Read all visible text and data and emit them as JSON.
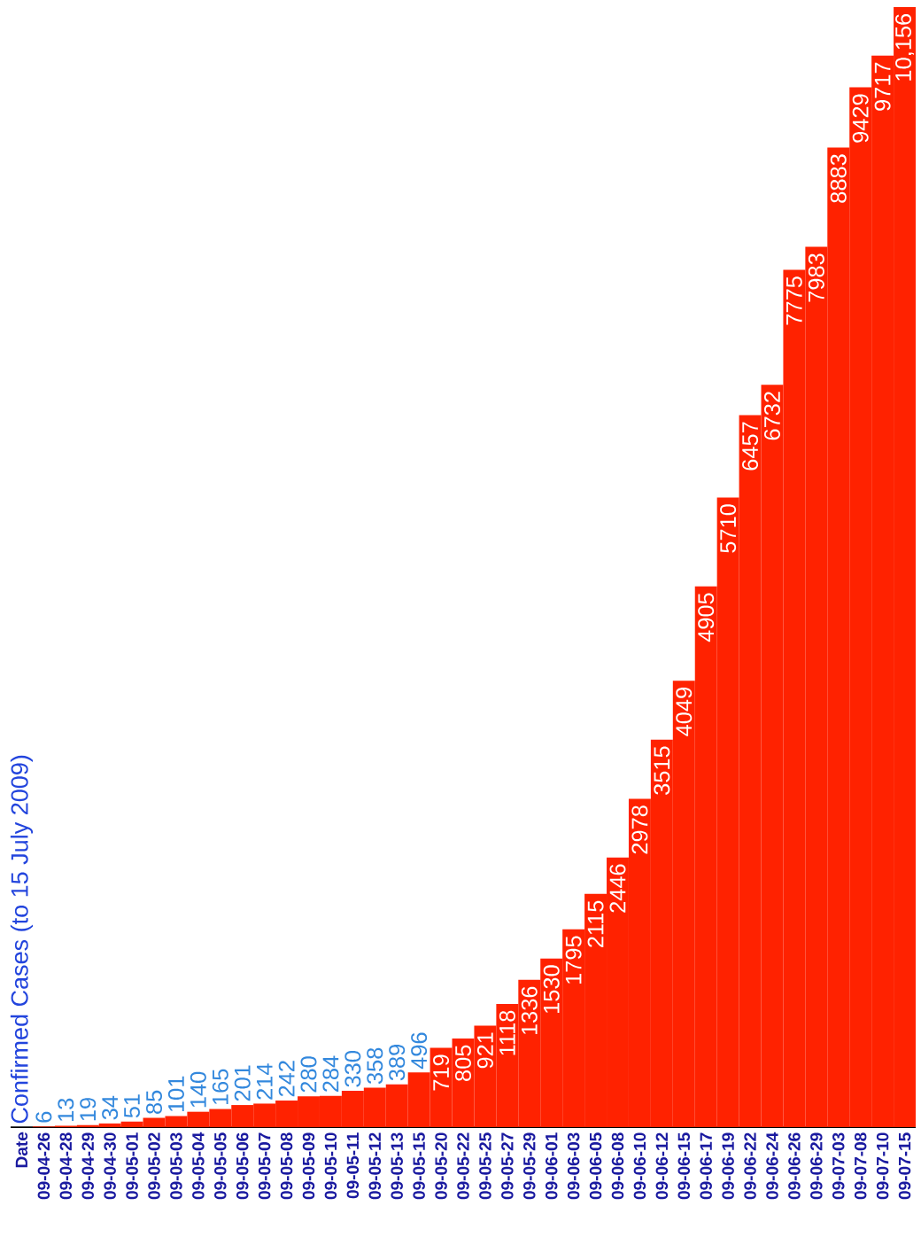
{
  "chart_data": {
    "type": "bar",
    "title": "Confirmed Cases (to 15 July 2009)",
    "annotations": [
      "Date"
    ],
    "categories": [
      "09-04-26",
      "09-04-28",
      "09-04-29",
      "09-04-30",
      "09-05-01",
      "09-05-02",
      "09-05-03",
      "09-05-04",
      "09-05-05",
      "09-05-06",
      "09-05-07",
      "09-05-08",
      "09-05-09",
      "09-05-10",
      "09-05-11",
      "09-05-12",
      "09-05-13",
      "09-05-15",
      "09-05-20",
      "09-05-22",
      "09-05-25",
      "09-05-27",
      "09-05-29",
      "09-06-01",
      "09-06-03",
      "09-06-05",
      "09-06-08",
      "09-06-10",
      "09-06-12",
      "09-06-15",
      "09-06-17",
      "09-06-19",
      "09-06-22",
      "09-06-24",
      "09-06-26",
      "09-06-29",
      "09-07-03",
      "09-07-08",
      "09-07-10",
      "09-07-15"
    ],
    "values": [
      6,
      13,
      19,
      34,
      51,
      85,
      101,
      140,
      165,
      201,
      214,
      242,
      280,
      284,
      330,
      358,
      389,
      496,
      719,
      805,
      921,
      1118,
      1336,
      1530,
      1795,
      2115,
      2446,
      2978,
      3515,
      4049,
      4905,
      5710,
      6457,
      6732,
      7775,
      7983,
      8883,
      9429,
      9717,
      10156
    ],
    "value_labels": [
      "6",
      "13",
      "19",
      "34",
      "51",
      "85",
      "101",
      "140",
      "165",
      "201",
      "214",
      "242",
      "280",
      "284",
      "330",
      "358",
      "389",
      "496",
      "719",
      "805",
      "921",
      "1118",
      "1336",
      "1530",
      "1795",
      "2115",
      "2446",
      "2978",
      "3515",
      "4049",
      "4905",
      "5710",
      "6457",
      "6732",
      "7775",
      "7983",
      "8883",
      "9429",
      "9717",
      "10,156"
    ],
    "color": "#ff2200"
  }
}
